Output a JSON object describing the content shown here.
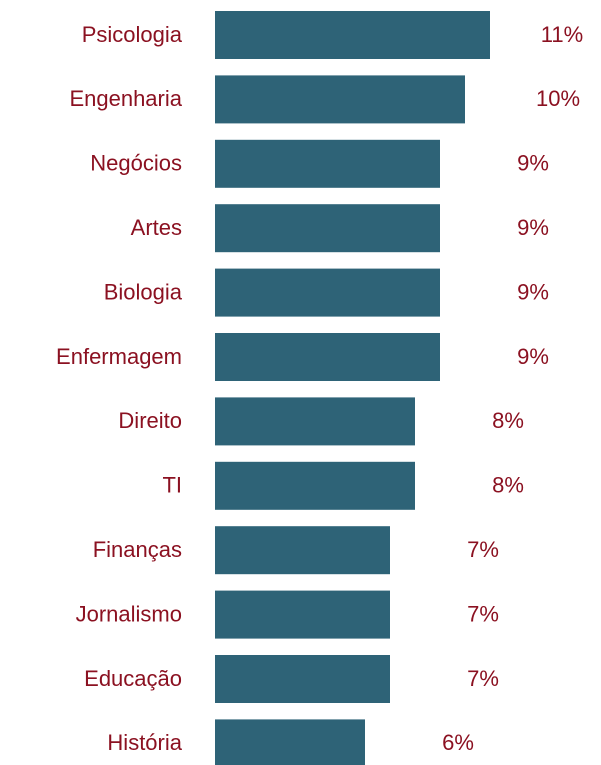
{
  "chart_data": {
    "type": "bar",
    "orientation": "horizontal",
    "categories": [
      "Psicologia",
      "Engenharia",
      "Negócios",
      "Artes",
      "Biologia",
      "Enfermagem",
      "Direito",
      "TI",
      "Finanças",
      "Jornalismo",
      "Educação",
      "História"
    ],
    "values": [
      11,
      10,
      9,
      9,
      9,
      9,
      8,
      8,
      7,
      7,
      7,
      6
    ],
    "value_labels": [
      "11%",
      "10%",
      "9%",
      "9%",
      "9%",
      "9%",
      "8%",
      "8%",
      "7%",
      "7%",
      "7%",
      "6%"
    ],
    "color": "#2e6377"
  }
}
